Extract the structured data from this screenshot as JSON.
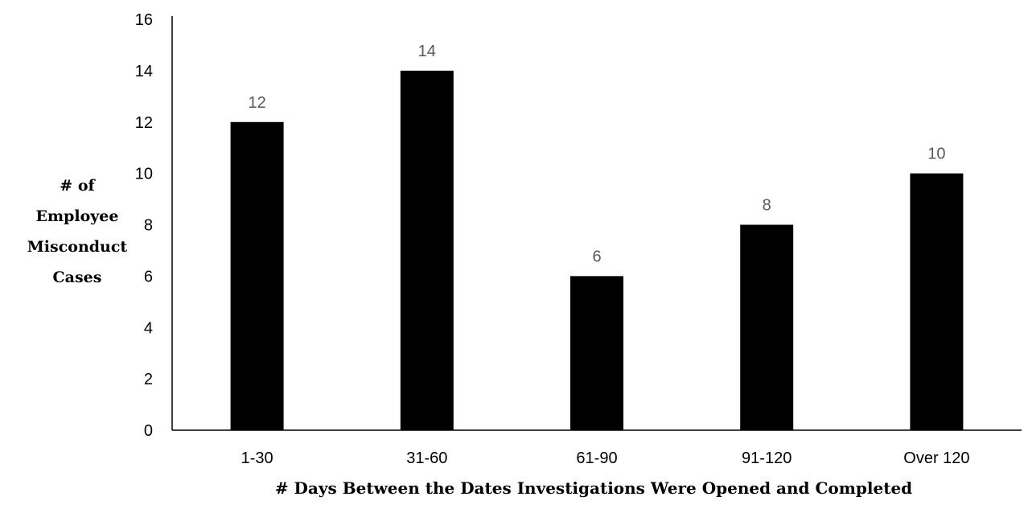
{
  "chart_data": {
    "type": "bar",
    "categories": [
      "1-30",
      "31-60",
      "61-90",
      "91-120",
      "Over 120"
    ],
    "values": [
      12,
      14,
      6,
      8,
      10
    ],
    "title": "",
    "xlabel": "# Days Between the Dates Investigations Were Opened and Completed",
    "ylabel_lines": [
      "# of",
      "Employee",
      "Misconduct",
      "Cases"
    ],
    "ylim": [
      0,
      16
    ],
    "yticks": [
      0,
      2,
      4,
      6,
      8,
      10,
      12,
      14,
      16
    ],
    "grid": false,
    "legend": "none",
    "data_labels": true,
    "bar_color": "#000000",
    "data_label_color": "#595959",
    "axis_color": "#000000"
  }
}
